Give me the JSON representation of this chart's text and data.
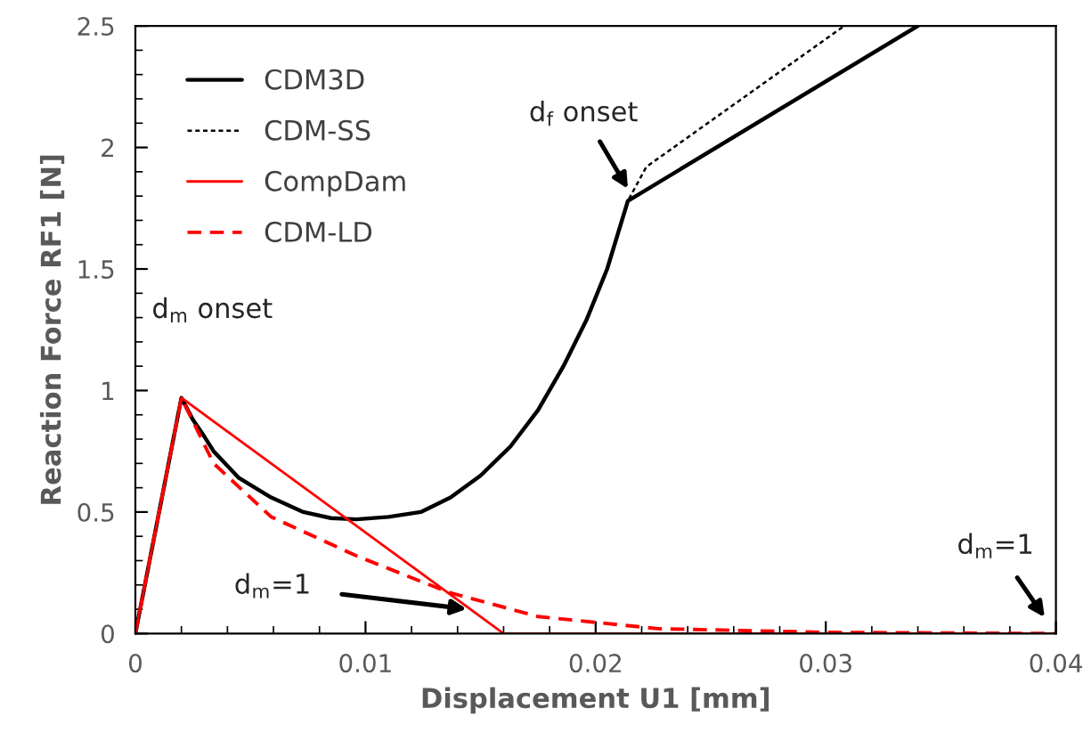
{
  "chart_data": {
    "type": "line",
    "xlabel": "Displacement U1 [mm]",
    "ylabel": "Reaction Force RF1 [N]",
    "xlim": [
      0,
      0.04
    ],
    "ylim": [
      0,
      2.5
    ],
    "xticks": [
      0,
      0.01,
      0.02,
      0.03,
      0.04
    ],
    "yticks": [
      0,
      0.5,
      1,
      1.5,
      2,
      2.5
    ],
    "grid": false,
    "legend": "top left",
    "marker": "none",
    "series": [
      {
        "name": "CDM3D",
        "color": "#000000",
        "line_style": "solid",
        "x": [
          0,
          0.002,
          0.0025,
          0.003,
          0.0034,
          0.0045,
          0.0059,
          0.0073,
          0.0085,
          0.0096,
          0.011,
          0.0124,
          0.0137,
          0.015,
          0.0163,
          0.0175,
          0.0186,
          0.0196,
          0.0205,
          0.0214,
          0.034
        ],
        "values": [
          0,
          0.97,
          0.88,
          0.81,
          0.75,
          0.64,
          0.56,
          0.5,
          0.475,
          0.47,
          0.48,
          0.5,
          0.56,
          0.65,
          0.77,
          0.92,
          1.1,
          1.29,
          1.5,
          1.78,
          2.5
        ]
      },
      {
        "name": "CDM-SS",
        "color": "#000000",
        "line_style": "dotted",
        "x": [
          0,
          0.002,
          0.0025,
          0.003,
          0.0034,
          0.0045,
          0.0059,
          0.0073,
          0.0085,
          0.0096,
          0.011,
          0.0124,
          0.0137,
          0.015,
          0.0163,
          0.0175,
          0.0186,
          0.0196,
          0.0205,
          0.0214,
          0.0222,
          0.0308
        ],
        "values": [
          0,
          0.97,
          0.88,
          0.81,
          0.75,
          0.64,
          0.56,
          0.5,
          0.475,
          0.47,
          0.48,
          0.5,
          0.56,
          0.65,
          0.77,
          0.92,
          1.1,
          1.29,
          1.5,
          1.78,
          1.92,
          2.5
        ]
      },
      {
        "name": "CompDam",
        "color": "#ff0000",
        "line_style": "solid",
        "x": [
          0,
          0.002,
          0.016,
          0.04
        ],
        "values": [
          0,
          0.97,
          0,
          0
        ]
      },
      {
        "name": "CDM-LD",
        "color": "#ff0000",
        "line_style": "dashed",
        "x": [
          0,
          0.002,
          0.0034,
          0.0059,
          0.0096,
          0.0136,
          0.0175,
          0.0227,
          0.03,
          0.04
        ],
        "values": [
          0,
          0.97,
          0.7,
          0.48,
          0.32,
          0.17,
          0.07,
          0.02,
          0.005,
          0
        ]
      }
    ],
    "annotations": [
      {
        "text": "d$_{m}$ onset",
        "x": 0.002,
        "y": 0.97
      },
      {
        "text": "d$_{f}$ onset",
        "x": 0.0214,
        "y": 1.83
      },
      {
        "text": "d$_{m}$=1",
        "x": 0.0145,
        "y": 0.1
      },
      {
        "text": "d$_{m}$=1",
        "x": 0.04,
        "y": 0
      }
    ]
  }
}
